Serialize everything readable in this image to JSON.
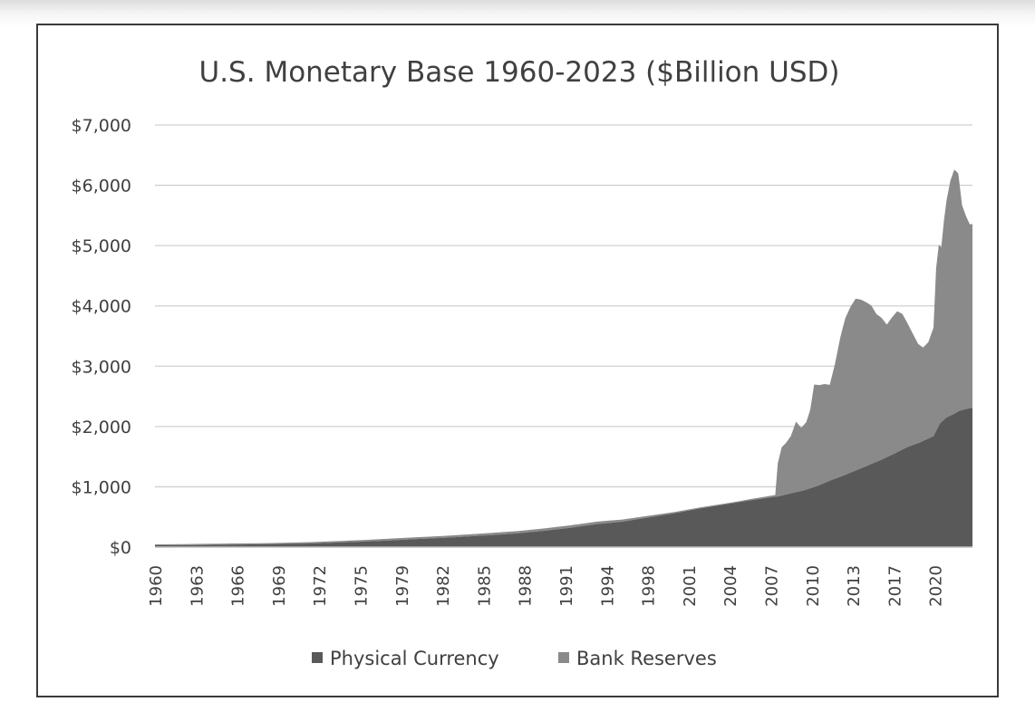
{
  "chart_data": {
    "type": "area",
    "stacked": true,
    "title": "U.S. Monetary Base 1960-2023 ($Billion USD)",
    "xlabel": "",
    "ylabel": "",
    "ylim": [
      0,
      7000
    ],
    "xlim": [
      1960,
      2023
    ],
    "y_ticks": [
      0,
      1000,
      2000,
      3000,
      4000,
      5000,
      6000,
      7000
    ],
    "y_tick_labels": [
      "$0",
      "$1,000",
      "$2,000",
      "$3,000",
      "$4,000",
      "$5,000",
      "$6,000",
      "$7,000"
    ],
    "x_tick_labels": [
      "1960",
      "1963",
      "1966",
      "1969",
      "1972",
      "1975",
      "1979",
      "1982",
      "1985",
      "1988",
      "1991",
      "1994",
      "1998",
      "2001",
      "2004",
      "2007",
      "2010",
      "2013",
      "2017",
      "2020"
    ],
    "grid": true,
    "legend_position": "bottom",
    "series": [
      {
        "name": "Physical Currency",
        "color": "#595959",
        "x": [
          1960,
          1962,
          1964,
          1966,
          1968,
          1970,
          1972,
          1974,
          1976,
          1978,
          1980,
          1982,
          1984,
          1986,
          1988,
          1990,
          1992,
          1994,
          1996,
          1998,
          2000,
          2002,
          2004,
          2006,
          2008,
          2009,
          2010,
          2011,
          2012,
          2013,
          2014,
          2015,
          2016,
          2017,
          2018,
          2019,
          2020,
          2020.5,
          2021,
          2021.5,
          2022,
          2022.5,
          2023
        ],
        "y": [
          30,
          32,
          36,
          41,
          46,
          52,
          60,
          75,
          90,
          110,
          130,
          150,
          175,
          200,
          230,
          270,
          320,
          380,
          420,
          490,
          560,
          640,
          710,
          780,
          840,
          890,
          940,
          1010,
          1100,
          1180,
          1270,
          1360,
          1450,
          1550,
          1660,
          1740,
          1840,
          2050,
          2150,
          2200,
          2260,
          2290,
          2310
        ]
      },
      {
        "name": "Bank Reserves",
        "color": "#8a8a8a",
        "x": [
          1960,
          1965,
          1970,
          1975,
          1980,
          1985,
          1990,
          1995,
          2000,
          2005,
          2007.8,
          2008.0,
          2008.3,
          2008.6,
          2009.0,
          2009.4,
          2009.8,
          2010.2,
          2010.5,
          2010.8,
          2011.2,
          2011.6,
          2012.0,
          2012.4,
          2012.8,
          2013.2,
          2013.6,
          2014.0,
          2014.4,
          2014.8,
          2015.2,
          2015.6,
          2016.0,
          2016.4,
          2016.8,
          2017.2,
          2017.6,
          2018.0,
          2018.4,
          2018.8,
          2019.2,
          2019.6,
          2020.0,
          2020.2,
          2020.4,
          2020.6,
          2020.8,
          2021.0,
          2021.3,
          2021.6,
          2021.9,
          2022.2,
          2022.5,
          2022.8,
          2023.0
        ],
        "y": [
          15,
          18,
          20,
          25,
          30,
          35,
          40,
          40,
          20,
          15,
          30,
          550,
          800,
          850,
          950,
          1170,
          1050,
          1120,
          1300,
          1700,
          1660,
          1640,
          1590,
          1900,
          2300,
          2600,
          2750,
          2850,
          2800,
          2720,
          2630,
          2450,
          2350,
          2200,
          2280,
          2340,
          2250,
          2050,
          1850,
          1650,
          1550,
          1600,
          1800,
          2700,
          3000,
          2900,
          3300,
          3600,
          3900,
          4050,
          3950,
          3400,
          3200,
          3050,
          3050
        ]
      }
    ]
  }
}
